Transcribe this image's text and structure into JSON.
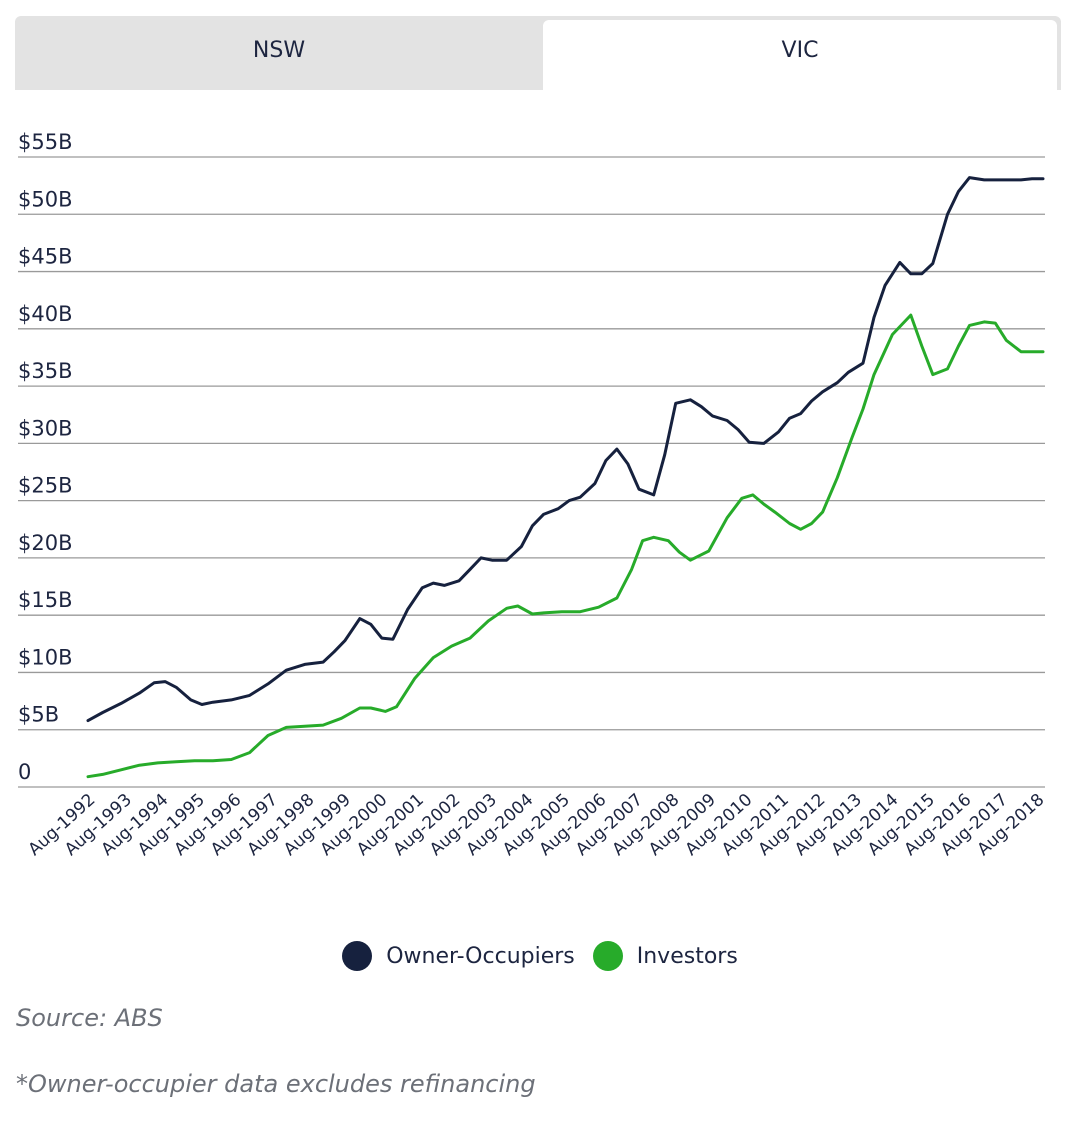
{
  "tabs": [
    {
      "label": "NSW",
      "active": false
    },
    {
      "label": "VIC",
      "active": true
    }
  ],
  "source": "Source: ABS",
  "footnote": "*Owner-occupier data excludes refinancing",
  "colors": {
    "owner": "#16213e",
    "investor": "#27ab2a",
    "grid": "#9a9a9a"
  },
  "chart_data": {
    "type": "line",
    "title": "",
    "xlabel": "",
    "ylabel": "",
    "ylim": [
      0,
      55
    ],
    "yticks": [
      0,
      5,
      10,
      15,
      20,
      25,
      30,
      35,
      40,
      45,
      50,
      55
    ],
    "ytick_labels": [
      "0",
      "$5B",
      "$10B",
      "$15B",
      "$20B",
      "$25B",
      "$30B",
      "$35B",
      "$40B",
      "$45B",
      "$50B",
      "$55B"
    ],
    "x_labels": [
      "Aug-1992",
      "Aug-1993",
      "Aug-1994",
      "Aug-1995",
      "Aug-1996",
      "Aug-1997",
      "Aug-1998",
      "Aug-1999",
      "Aug-2000",
      "Aug-2001",
      "Aug-2002",
      "Aug-2003",
      "Aug-2004",
      "Aug-2005",
      "Aug-2006",
      "Aug-2007",
      "Aug-2008",
      "Aug-2009",
      "Aug-2010",
      "Aug-2011",
      "Aug-2012",
      "Aug-2013",
      "Aug-2014",
      "Aug-2015",
      "Aug-2016",
      "Aug-2017",
      "Aug-2018"
    ],
    "x_range": [
      1992.6,
      2018.6
    ],
    "legend": "bottom-center",
    "grid": true,
    "series": [
      {
        "name": "Owner-Occupiers",
        "color": "#16213e",
        "x": [
          1992.6,
          1993.0,
          1993.5,
          1994.0,
          1994.4,
          1994.7,
          1995.0,
          1995.4,
          1995.7,
          1996.0,
          1996.5,
          1997.0,
          1997.5,
          1998.0,
          1998.5,
          1999.0,
          1999.3,
          1999.6,
          2000.0,
          2000.3,
          2000.6,
          2000.9,
          2001.3,
          2001.7,
          2002.0,
          2002.3,
          2002.7,
          2003.0,
          2003.3,
          2003.6,
          2004.0,
          2004.4,
          2004.7,
          2005.0,
          2005.4,
          2005.7,
          2006.0,
          2006.4,
          2006.7,
          2007.0,
          2007.3,
          2007.6,
          2008.0,
          2008.3,
          2008.6,
          2009.0,
          2009.3,
          2009.6,
          2010.0,
          2010.3,
          2010.6,
          2011.0,
          2011.4,
          2011.7,
          2012.0,
          2012.3,
          2012.6,
          2013.0,
          2013.3,
          2013.7,
          2014.0,
          2014.3,
          2014.7,
          2015.0,
          2015.3,
          2015.6,
          2016.0,
          2016.3,
          2016.6,
          2017.0,
          2017.3,
          2017.6,
          2018.0,
          2018.3,
          2018.6
        ],
        "y": [
          5.8,
          6.5,
          7.3,
          8.2,
          9.1,
          9.2,
          8.7,
          7.6,
          7.2,
          7.4,
          7.6,
          8.0,
          9.0,
          10.2,
          10.7,
          10.9,
          11.8,
          12.8,
          14.7,
          14.2,
          13.0,
          12.9,
          15.5,
          17.4,
          17.8,
          17.6,
          18.0,
          19.0,
          20.0,
          19.8,
          19.8,
          21.0,
          22.8,
          23.8,
          24.3,
          25.0,
          25.3,
          26.5,
          28.5,
          29.5,
          28.2,
          26.0,
          25.5,
          29.0,
          33.5,
          33.8,
          33.2,
          32.4,
          32.0,
          31.2,
          30.1,
          30.0,
          31.0,
          32.2,
          32.6,
          33.7,
          34.5,
          35.3,
          36.2,
          37.0,
          41.0,
          43.8,
          45.8,
          44.8,
          44.8,
          45.7,
          50.0,
          52.0,
          53.2,
          53.0,
          53.0,
          53.0,
          53.0,
          53.1,
          53.1
        ]
      },
      {
        "name": "Investors",
        "color": "#27ab2a",
        "x": [
          1992.6,
          1993.0,
          1993.5,
          1994.0,
          1994.5,
          1995.0,
          1995.5,
          1996.0,
          1996.5,
          1997.0,
          1997.5,
          1998.0,
          1998.5,
          1999.0,
          1999.5,
          2000.0,
          2000.3,
          2000.7,
          2001.0,
          2001.5,
          2002.0,
          2002.5,
          2003.0,
          2003.5,
          2004.0,
          2004.3,
          2004.7,
          2005.0,
          2005.5,
          2006.0,
          2006.5,
          2007.0,
          2007.4,
          2007.7,
          2008.0,
          2008.4,
          2008.7,
          2009.0,
          2009.5,
          2010.0,
          2010.4,
          2010.7,
          2011.0,
          2011.3,
          2011.7,
          2012.0,
          2012.3,
          2012.6,
          2013.0,
          2013.4,
          2013.7,
          2014.0,
          2014.5,
          2015.0,
          2015.3,
          2015.6,
          2016.0,
          2016.3,
          2016.6,
          2017.0,
          2017.3,
          2017.6,
          2018.0,
          2018.3,
          2018.6
        ],
        "y": [
          0.9,
          1.1,
          1.5,
          1.9,
          2.1,
          2.2,
          2.3,
          2.3,
          2.4,
          3.0,
          4.5,
          5.2,
          5.3,
          5.4,
          6.0,
          6.9,
          6.9,
          6.6,
          7.0,
          9.5,
          11.3,
          12.3,
          13.0,
          14.5,
          15.6,
          15.8,
          15.1,
          15.2,
          15.3,
          15.3,
          15.7,
          16.5,
          19.0,
          21.5,
          21.8,
          21.5,
          20.5,
          19.8,
          20.6,
          23.5,
          25.2,
          25.5,
          24.7,
          24.0,
          23.0,
          22.5,
          23.0,
          24.0,
          27.0,
          30.5,
          33.0,
          36.0,
          39.5,
          41.2,
          38.5,
          36.0,
          36.5,
          38.5,
          40.3,
          40.6,
          40.5,
          39.0,
          38.0,
          38.0,
          38.0
        ]
      }
    ]
  }
}
